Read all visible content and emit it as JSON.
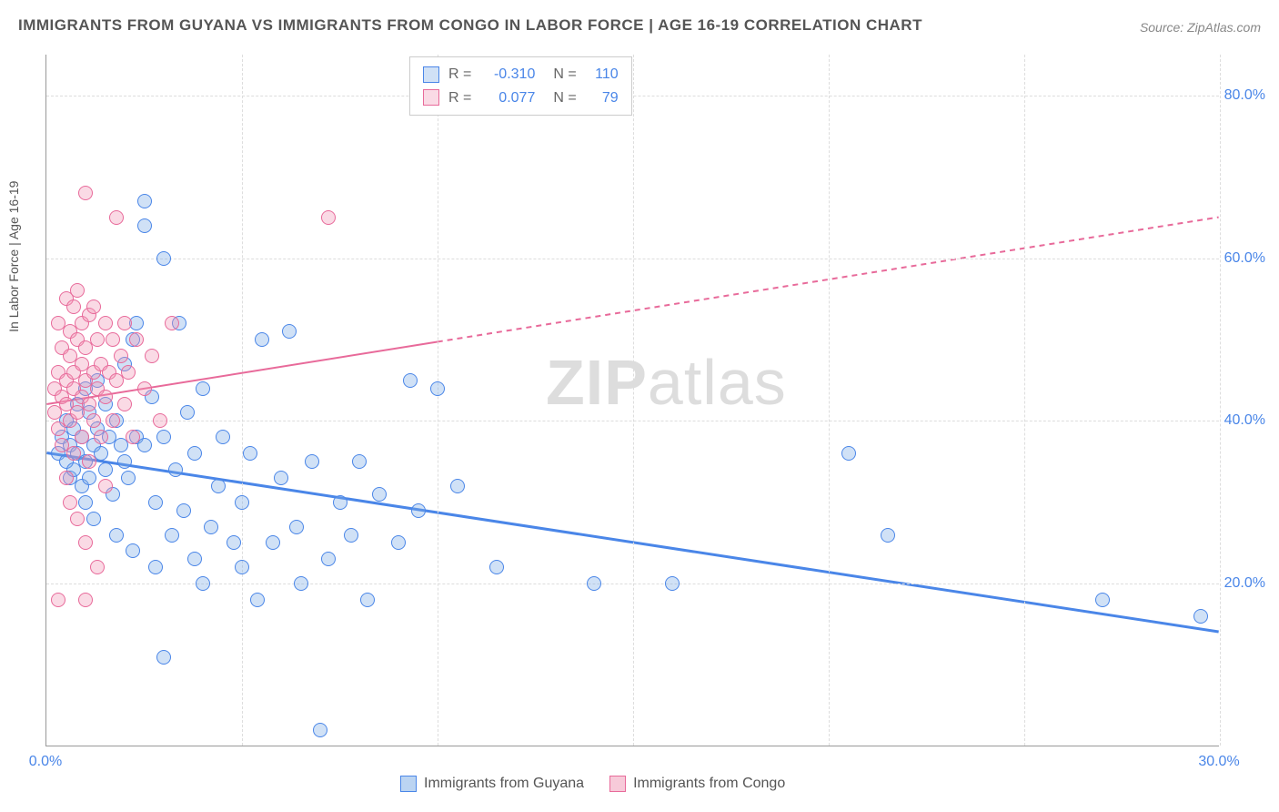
{
  "title": "IMMIGRANTS FROM GUYANA VS IMMIGRANTS FROM CONGO IN LABOR FORCE | AGE 16-19 CORRELATION CHART",
  "source_label": "Source: ZipAtlas.com",
  "watermark_bold": "ZIP",
  "watermark_light": "atlas",
  "ylabel": "In Labor Force | Age 16-19",
  "chart": {
    "xlim": [
      0,
      30
    ],
    "ylim": [
      0,
      85
    ],
    "xticks": [
      {
        "v": 0,
        "label": "0.0%"
      },
      {
        "v": 30,
        "label": "30.0%"
      }
    ],
    "yticks": [
      {
        "v": 20,
        "label": "20.0%"
      },
      {
        "v": 40,
        "label": "40.0%"
      },
      {
        "v": 60,
        "label": "60.0%"
      },
      {
        "v": 80,
        "label": "80.0%"
      }
    ],
    "x_gridlines": [
      5,
      10,
      15,
      20,
      25,
      30
    ],
    "background_color": "#ffffff",
    "grid_color": "#dddddd",
    "tick_color": "#4a86e8",
    "axis_color": "#999999",
    "marker_radius": 8,
    "marker_border": 1.5,
    "series": [
      {
        "name": "Immigrants from Guyana",
        "fill": "rgba(120,170,230,0.35)",
        "stroke": "#4a86e8",
        "r_value": "-0.310",
        "n_value": "110",
        "line": {
          "x1": 0,
          "y1": 36,
          "x2": 30,
          "y2": 14,
          "solid_until_x": 30,
          "width": 3
        },
        "points": [
          [
            0.3,
            36
          ],
          [
            0.4,
            38
          ],
          [
            0.5,
            35
          ],
          [
            0.5,
            40
          ],
          [
            0.6,
            33
          ],
          [
            0.6,
            37
          ],
          [
            0.7,
            39
          ],
          [
            0.7,
            34
          ],
          [
            0.8,
            36
          ],
          [
            0.8,
            42
          ],
          [
            0.9,
            38
          ],
          [
            0.9,
            32
          ],
          [
            1.0,
            35
          ],
          [
            1.0,
            44
          ],
          [
            1.0,
            30
          ],
          [
            1.1,
            41
          ],
          [
            1.1,
            33
          ],
          [
            1.2,
            37
          ],
          [
            1.2,
            28
          ],
          [
            1.3,
            39
          ],
          [
            1.3,
            45
          ],
          [
            1.4,
            36
          ],
          [
            1.5,
            34
          ],
          [
            1.5,
            42
          ],
          [
            1.6,
            38
          ],
          [
            1.7,
            31
          ],
          [
            1.8,
            40
          ],
          [
            1.8,
            26
          ],
          [
            1.9,
            37
          ],
          [
            2.0,
            35
          ],
          [
            2.0,
            47
          ],
          [
            2.1,
            33
          ],
          [
            2.2,
            24
          ],
          [
            2.2,
            50
          ],
          [
            2.3,
            38
          ],
          [
            2.3,
            52
          ],
          [
            2.5,
            37
          ],
          [
            2.5,
            67
          ],
          [
            2.5,
            64
          ],
          [
            2.7,
            43
          ],
          [
            2.8,
            30
          ],
          [
            2.8,
            22
          ],
          [
            3.0,
            38
          ],
          [
            3.0,
            11
          ],
          [
            3.0,
            60
          ],
          [
            3.2,
            26
          ],
          [
            3.3,
            34
          ],
          [
            3.4,
            52
          ],
          [
            3.5,
            29
          ],
          [
            3.6,
            41
          ],
          [
            3.8,
            23
          ],
          [
            3.8,
            36
          ],
          [
            4.0,
            44
          ],
          [
            4.0,
            20
          ],
          [
            4.2,
            27
          ],
          [
            4.4,
            32
          ],
          [
            4.5,
            38
          ],
          [
            4.8,
            25
          ],
          [
            5.0,
            30
          ],
          [
            5.0,
            22
          ],
          [
            5.2,
            36
          ],
          [
            5.4,
            18
          ],
          [
            5.5,
            50
          ],
          [
            5.8,
            25
          ],
          [
            6.0,
            33
          ],
          [
            6.2,
            51
          ],
          [
            6.4,
            27
          ],
          [
            6.5,
            20
          ],
          [
            6.8,
            35
          ],
          [
            7.0,
            2
          ],
          [
            7.2,
            23
          ],
          [
            7.5,
            30
          ],
          [
            7.8,
            26
          ],
          [
            8.0,
            35
          ],
          [
            8.2,
            18
          ],
          [
            8.5,
            31
          ],
          [
            9.0,
            25
          ],
          [
            9.3,
            45
          ],
          [
            9.5,
            29
          ],
          [
            10.0,
            44
          ],
          [
            10.5,
            32
          ],
          [
            11.5,
            22
          ],
          [
            14.0,
            20
          ],
          [
            16.0,
            20
          ],
          [
            20.5,
            36
          ],
          [
            21.5,
            26
          ],
          [
            27.0,
            18
          ],
          [
            29.5,
            16
          ]
        ]
      },
      {
        "name": "Immigrants from Congo",
        "fill": "rgba(240,150,180,0.35)",
        "stroke": "#e86a9a",
        "r_value": "0.077",
        "n_value": "79",
        "line": {
          "x1": 0,
          "y1": 42,
          "x2": 30,
          "y2": 65,
          "solid_until_x": 10,
          "width": 2
        },
        "points": [
          [
            0.2,
            41
          ],
          [
            0.2,
            44
          ],
          [
            0.3,
            39
          ],
          [
            0.3,
            46
          ],
          [
            0.3,
            52
          ],
          [
            0.4,
            43
          ],
          [
            0.4,
            37
          ],
          [
            0.4,
            49
          ],
          [
            0.5,
            45
          ],
          [
            0.5,
            42
          ],
          [
            0.5,
            55
          ],
          [
            0.5,
            33
          ],
          [
            0.6,
            48
          ],
          [
            0.6,
            40
          ],
          [
            0.6,
            51
          ],
          [
            0.6,
            30
          ],
          [
            0.7,
            46
          ],
          [
            0.7,
            54
          ],
          [
            0.7,
            36
          ],
          [
            0.7,
            44
          ],
          [
            0.8,
            41
          ],
          [
            0.8,
            50
          ],
          [
            0.8,
            56
          ],
          [
            0.8,
            28
          ],
          [
            0.9,
            47
          ],
          [
            0.9,
            43
          ],
          [
            0.9,
            52
          ],
          [
            0.9,
            38
          ],
          [
            1.0,
            45
          ],
          [
            1.0,
            68
          ],
          [
            1.0,
            25
          ],
          [
            1.0,
            49
          ],
          [
            1.1,
            42
          ],
          [
            1.1,
            53
          ],
          [
            1.1,
            35
          ],
          [
            1.2,
            46
          ],
          [
            1.2,
            40
          ],
          [
            1.2,
            54
          ],
          [
            1.3,
            44
          ],
          [
            1.3,
            50
          ],
          [
            1.3,
            22
          ],
          [
            1.4,
            47
          ],
          [
            1.4,
            38
          ],
          [
            1.5,
            52
          ],
          [
            1.5,
            43
          ],
          [
            1.5,
            32
          ],
          [
            1.6,
            46
          ],
          [
            1.7,
            50
          ],
          [
            1.7,
            40
          ],
          [
            1.8,
            65
          ],
          [
            1.8,
            45
          ],
          [
            1.9,
            48
          ],
          [
            2.0,
            42
          ],
          [
            2.0,
            52
          ],
          [
            2.1,
            46
          ],
          [
            2.2,
            38
          ],
          [
            2.3,
            50
          ],
          [
            2.5,
            44
          ],
          [
            2.7,
            48
          ],
          [
            2.9,
            40
          ],
          [
            3.2,
            52
          ],
          [
            7.2,
            65
          ],
          [
            0.3,
            18
          ],
          [
            1.0,
            18
          ]
        ]
      }
    ]
  },
  "legend_top": {
    "r_label": "R =",
    "n_label": "N =",
    "value_color": "#4a86e8",
    "text_color": "#666666"
  },
  "legend_bottom_items": [
    {
      "label": "Immigrants from Guyana",
      "fill": "rgba(120,170,230,0.5)",
      "stroke": "#4a86e8"
    },
    {
      "label": "Immigrants from Congo",
      "fill": "rgba(240,150,180,0.5)",
      "stroke": "#e86a9a"
    }
  ]
}
